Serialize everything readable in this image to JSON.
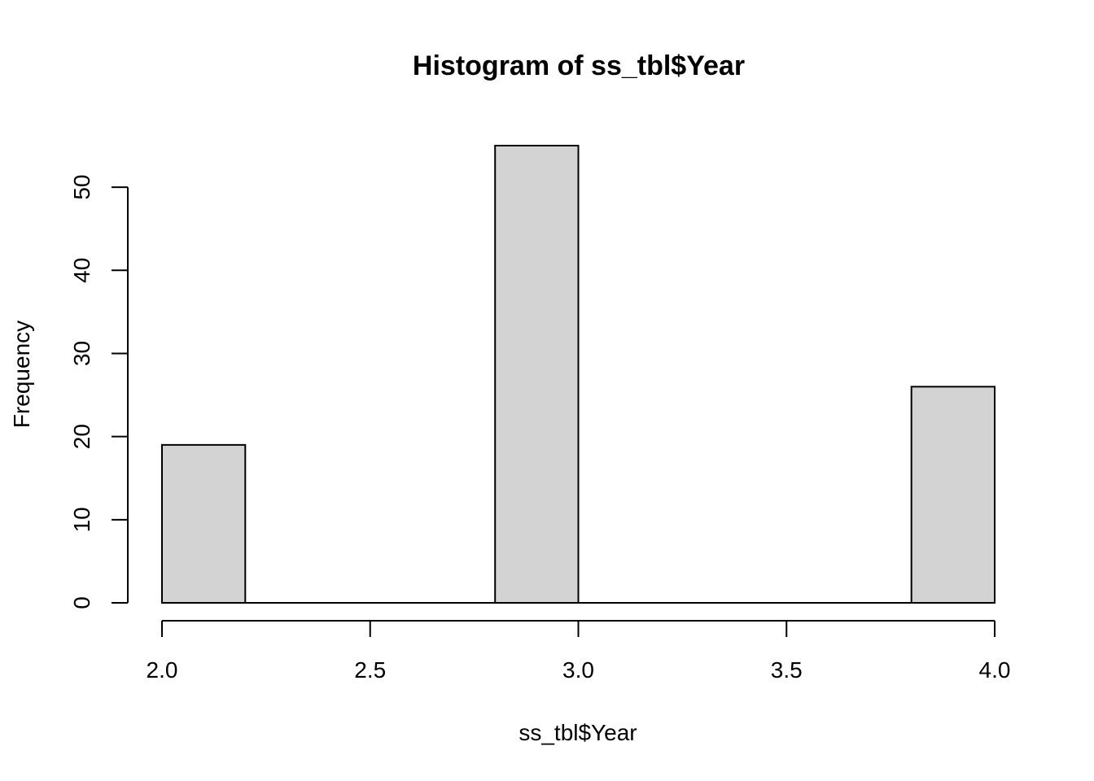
{
  "chart_data": {
    "type": "bar",
    "title": "Histogram of ss_tbl$Year",
    "xlabel": "ss_tbl$Year",
    "ylabel": "Frequency",
    "bin_edges": [
      2.0,
      2.2,
      2.4,
      2.6,
      2.8,
      3.0,
      3.2,
      3.4,
      3.6,
      3.8,
      4.0
    ],
    "values": [
      19,
      0,
      0,
      0,
      55,
      0,
      0,
      0,
      0,
      26
    ],
    "xlim": [
      2.0,
      4.0
    ],
    "ylim": [
      0,
      55
    ],
    "x_ticks": [
      2.0,
      2.5,
      3.0,
      3.5,
      4.0
    ],
    "x_tick_labels": [
      "2.0",
      "2.5",
      "3.0",
      "3.5",
      "4.0"
    ],
    "y_ticks": [
      0,
      10,
      20,
      30,
      40,
      50
    ],
    "y_tick_labels": [
      "0",
      "10",
      "20",
      "30",
      "40",
      "50"
    ],
    "grid": false,
    "bar_color": "#d3d3d3",
    "bar_border_color": "#000000"
  }
}
